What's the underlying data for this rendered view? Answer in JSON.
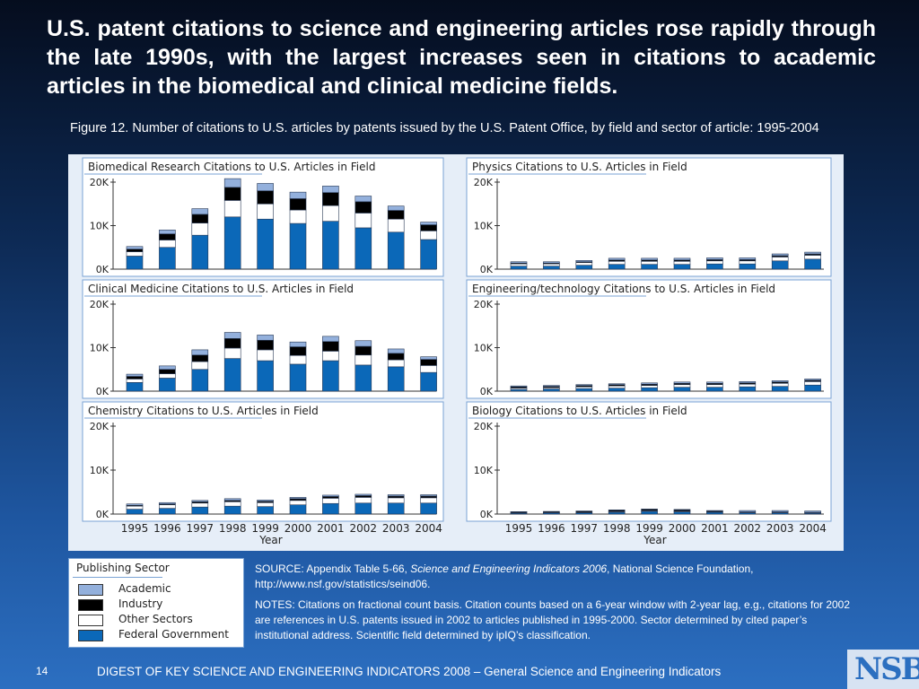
{
  "slide": {
    "title": "U.S. patent citations to science and engineering articles rose rapidly through the late 1990s, with the largest increases seen in citations to academic articles in the biomedical and clinical medicine fields.",
    "figure_caption": "Figure 12. Number of citations to U.S. articles by patents issued by the U.S. Patent Office, by field and sector of article: 1995-2004",
    "source_prefix": "SOURCE: Appendix Table 5-66, ",
    "source_italic": "Science and Engineering Indicators 2006",
    "source_suffix": ", National Science Foundation, http://www.nsf.gov/statistics/seind06.",
    "notes": "NOTES: Citations on fractional count basis. Citation counts based on a 6-year window with 2-year lag, e.g., citations for 2002 are references in U.S. patents issued in 2002 to articles published in 1995-2000. Sector determined by cited paper’s institutional address. Scientific field determined by ipIQ’s classification.",
    "footer": "DIGEST OF KEY SCIENCE AND ENGINEERING INDICATORS 2008 – General Science and Engineering Indicators",
    "page_number": "14",
    "logo_text": "NSB"
  },
  "legend": {
    "title": "Publishing Sector",
    "items": [
      {
        "label": "Academic",
        "color": "#93b0dc"
      },
      {
        "label": "Industry",
        "color": "#000000"
      },
      {
        "label": "Other Sectors",
        "color": "#ffffff"
      },
      {
        "label": "Federal Government",
        "color": "#0b68b8"
      }
    ]
  },
  "colors": {
    "federal": "#0b68b8",
    "other": "#ffffff",
    "industry": "#000000",
    "academic": "#93b0dc",
    "panel_border": "#7aa3d4"
  },
  "chart_data": [
    {
      "type": "bar",
      "stacked": true,
      "title": "Biomedical Research Citations to U.S. Articles in Field",
      "categories": [
        "1995",
        "1996",
        "1997",
        "1998",
        "1999",
        "2000",
        "2001",
        "2002",
        "2003",
        "2004"
      ],
      "yticks": [
        "0K",
        "10K",
        "20K"
      ],
      "ylim": [
        0,
        22000
      ],
      "xlabel": "",
      "series": [
        {
          "name": "Federal Government",
          "values": [
            3000,
            5000,
            7800,
            12000,
            11500,
            10500,
            11000,
            9500,
            8500,
            6800
          ]
        },
        {
          "name": "Other Sectors",
          "values": [
            1000,
            1700,
            2800,
            3800,
            3500,
            3100,
            3600,
            3400,
            3000,
            2000
          ]
        },
        {
          "name": "Industry",
          "values": [
            600,
            1400,
            2000,
            3000,
            3000,
            2600,
            3000,
            2600,
            2000,
            1400
          ]
        },
        {
          "name": "Academic",
          "values": [
            600,
            900,
            1300,
            2000,
            1700,
            1500,
            1500,
            1300,
            1000,
            600
          ]
        }
      ]
    },
    {
      "type": "bar",
      "stacked": true,
      "title": "Physics Citations to U.S. Articles in Field",
      "categories": [
        "1995",
        "1996",
        "1997",
        "1998",
        "1999",
        "2000",
        "2001",
        "2002",
        "2003",
        "2004"
      ],
      "yticks": [
        "0K",
        "10K",
        "20K"
      ],
      "ylim": [
        0,
        22000
      ],
      "xlabel": "",
      "series": [
        {
          "name": "Federal Government",
          "values": [
            700,
            700,
            900,
            1100,
            1100,
            1100,
            1200,
            1200,
            1900,
            2300
          ]
        },
        {
          "name": "Other Sectors",
          "values": [
            500,
            500,
            600,
            700,
            700,
            700,
            700,
            700,
            900,
            900
          ]
        },
        {
          "name": "Industry",
          "values": [
            200,
            200,
            200,
            300,
            300,
            300,
            300,
            300,
            300,
            300
          ]
        },
        {
          "name": "Academic",
          "values": [
            300,
            300,
            300,
            400,
            400,
            400,
            400,
            400,
            400,
            400
          ]
        }
      ]
    },
    {
      "type": "bar",
      "stacked": true,
      "title": "Clinical Medicine Citations to U.S. Articles in Field",
      "categories": [
        "1995",
        "1996",
        "1997",
        "1998",
        "1999",
        "2000",
        "2001",
        "2002",
        "2003",
        "2004"
      ],
      "yticks": [
        "0K",
        "10K",
        "20K"
      ],
      "ylim": [
        0,
        22000
      ],
      "xlabel": "",
      "series": [
        {
          "name": "Federal Government",
          "values": [
            2000,
            3000,
            5000,
            7500,
            7000,
            6200,
            7000,
            6000,
            5600,
            4300
          ]
        },
        {
          "name": "Other Sectors",
          "values": [
            800,
            1000,
            1800,
            2400,
            2500,
            2000,
            2200,
            2300,
            1600,
            1600
          ]
        },
        {
          "name": "Industry",
          "values": [
            600,
            1000,
            1500,
            2200,
            2200,
            2000,
            2200,
            2000,
            1500,
            1400
          ]
        },
        {
          "name": "Academic",
          "values": [
            500,
            800,
            1200,
            1400,
            1200,
            1100,
            1200,
            1300,
            1000,
            600
          ]
        }
      ]
    },
    {
      "type": "bar",
      "stacked": true,
      "title": "Engineering/technology Citations to U.S. Articles in Field",
      "categories": [
        "1995",
        "1996",
        "1997",
        "1998",
        "1999",
        "2000",
        "2001",
        "2002",
        "2003",
        "2004"
      ],
      "yticks": [
        "0K",
        "10K",
        "20K"
      ],
      "ylim": [
        0,
        22000
      ],
      "xlabel": "",
      "series": [
        {
          "name": "Federal Government",
          "values": [
            400,
            500,
            600,
            700,
            800,
            900,
            900,
            1000,
            1100,
            1400
          ]
        },
        {
          "name": "Other Sectors",
          "values": [
            300,
            300,
            400,
            500,
            500,
            600,
            600,
            600,
            700,
            800
          ]
        },
        {
          "name": "Industry",
          "values": [
            300,
            300,
            300,
            300,
            300,
            300,
            300,
            300,
            300,
            300
          ]
        },
        {
          "name": "Academic",
          "values": [
            200,
            200,
            200,
            200,
            300,
            300,
            300,
            300,
            300,
            300
          ]
        }
      ]
    },
    {
      "type": "bar",
      "stacked": true,
      "title": "Chemistry Citations to U.S. Articles in Field",
      "categories": [
        "1995",
        "1996",
        "1997",
        "1998",
        "1999",
        "2000",
        "2001",
        "2002",
        "2003",
        "2004"
      ],
      "yticks": [
        "0K",
        "10K",
        "20K"
      ],
      "ylim": [
        0,
        22000
      ],
      "xlabel": "Year",
      "series": [
        {
          "name": "Federal Government",
          "values": [
            1100,
            1300,
            1600,
            1800,
            1700,
            2100,
            2400,
            2500,
            2500,
            2500
          ]
        },
        {
          "name": "Other Sectors",
          "values": [
            700,
            800,
            900,
            1000,
            900,
            1000,
            1200,
            1300,
            1200,
            1200
          ]
        },
        {
          "name": "Industry",
          "values": [
            200,
            200,
            300,
            300,
            300,
            400,
            400,
            400,
            400,
            400
          ]
        },
        {
          "name": "Academic",
          "values": [
            300,
            300,
            300,
            400,
            300,
            300,
            300,
            300,
            300,
            300
          ]
        }
      ]
    },
    {
      "type": "bar",
      "stacked": true,
      "title": "Biology Citations to U.S. Articles in Field",
      "categories": [
        "1995",
        "1996",
        "1997",
        "1998",
        "1999",
        "2000",
        "2001",
        "2002",
        "2003",
        "2004"
      ],
      "yticks": [
        "0K",
        "10K",
        "20K"
      ],
      "ylim": [
        0,
        22000
      ],
      "xlabel": "Year",
      "series": [
        {
          "name": "Federal Government",
          "values": [
            200,
            250,
            300,
            400,
            600,
            500,
            400,
            300,
            300,
            200
          ]
        },
        {
          "name": "Other Sectors",
          "values": [
            100,
            100,
            100,
            150,
            150,
            150,
            100,
            100,
            100,
            100
          ]
        },
        {
          "name": "Industry",
          "values": [
            200,
            200,
            250,
            300,
            300,
            300,
            200,
            100,
            100,
            100
          ]
        },
        {
          "name": "Academic",
          "values": [
            50,
            50,
            50,
            100,
            100,
            100,
            100,
            300,
            300,
            300
          ]
        }
      ]
    }
  ]
}
